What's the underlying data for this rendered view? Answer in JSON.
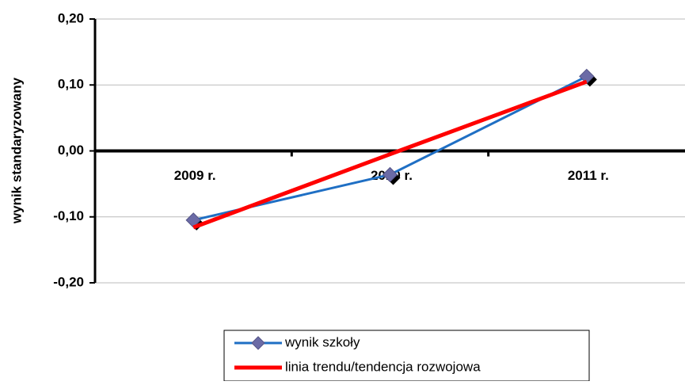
{
  "chart_data": {
    "type": "line",
    "y_label": "wynik standaryzowany",
    "categories": [
      "2009 r.",
      "2010 r.",
      "2011 r."
    ],
    "series": [
      {
        "name": "wynik szkoły",
        "color": "#1f6fc4",
        "values": [
          -0.105,
          -0.036,
          0.113
        ]
      },
      {
        "name": "linia trendu/tendencja rozwojowa",
        "color": "#ff0000",
        "values": [
          -0.116,
          -0.005,
          0.105
        ]
      }
    ],
    "ylim": [
      -0.2,
      0.2
    ],
    "yticks": [
      {
        "value": 0.2,
        "label": "0,20"
      },
      {
        "value": 0.1,
        "label": "0,10"
      },
      {
        "value": 0,
        "label": "0,00"
      },
      {
        "value": -0.1,
        "label": "-0,10"
      },
      {
        "value": -0.2,
        "label": "-0,20"
      }
    ],
    "grid": true
  }
}
